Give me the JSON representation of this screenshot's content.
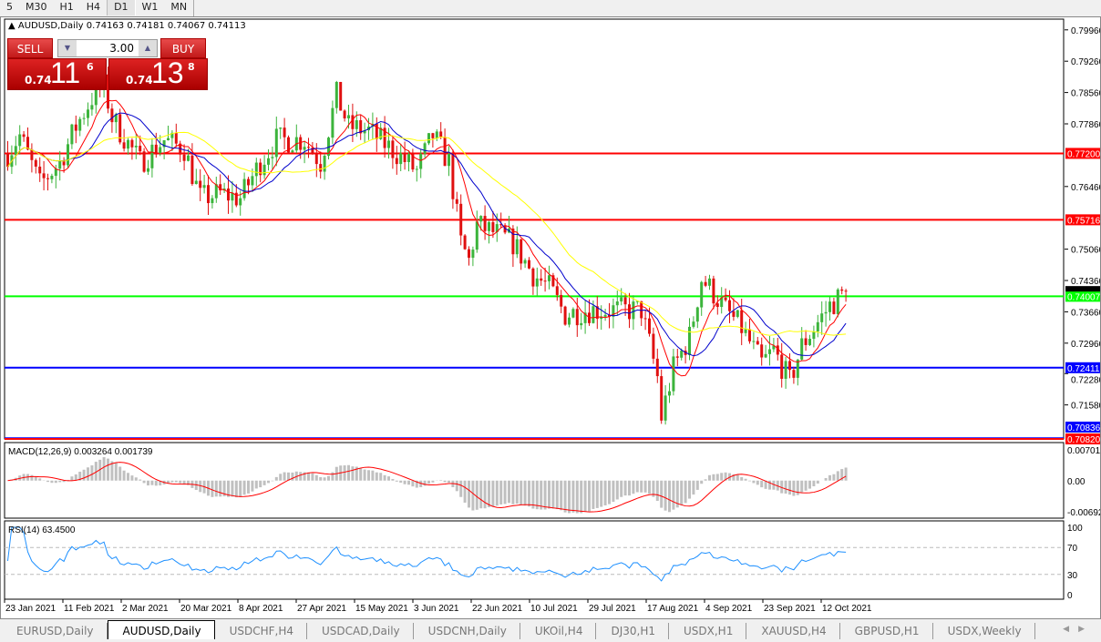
{
  "timeframes": [
    "5",
    "M30",
    "H1",
    "H4",
    "D1",
    "W1",
    "MN"
  ],
  "selected_timeframe": "D1",
  "header": {
    "symbol": "AUDUSD,Daily",
    "ohlc": "0.74163 0.74181 0.74067 0.74113"
  },
  "trade_panel": {
    "sell_label": "SELL",
    "buy_label": "BUY",
    "lot": "3.00",
    "sell": {
      "prefix": "0.74",
      "big": "11",
      "sup": "6"
    },
    "buy": {
      "prefix": "0.74",
      "big": "13",
      "sup": "8"
    }
  },
  "price_axis": {
    "ticks": [
      "0.79960",
      "0.79260",
      "0.78560",
      "0.77860",
      "0.76460",
      "0.75060",
      "0.74360",
      "0.73660",
      "0.72960",
      "0.72280",
      "0.71580"
    ],
    "tick_values": [
      0.7996,
      0.7926,
      0.7856,
      0.7786,
      0.7646,
      0.7506,
      0.7436,
      0.7366,
      0.7296,
      0.7228,
      0.7158
    ],
    "range": [
      0.7082,
      0.802
    ]
  },
  "levels": [
    {
      "label": "0.77200",
      "value": 0.772,
      "color": "#ff0000"
    },
    {
      "label": "0.75716",
      "value": 0.75716,
      "color": "#ff0000"
    },
    {
      "label": "0.74007",
      "value": 0.74007,
      "color": "#00ff00"
    },
    {
      "label": "0.72411",
      "value": 0.72411,
      "color": "#0000ff"
    },
    {
      "label": "0.70836",
      "value": 0.70836,
      "color": "#0000ff"
    },
    {
      "label": "0.70820",
      "value": 0.7082,
      "color": "#ff0000"
    }
  ],
  "current_price": {
    "label": "0.74113",
    "value": 0.74113
  },
  "candle_colors": {
    "up": "#3cb43c",
    "down": "#e01010"
  },
  "ma_colors": [
    "#ff0000",
    "#0000cc",
    "#ffff00"
  ],
  "price_path": [
    [
      0,
      0.772
    ],
    [
      3,
      0.776
    ],
    [
      8,
      0.765
    ],
    [
      13,
      0.77
    ],
    [
      17,
      0.778
    ],
    [
      22,
      0.786
    ],
    [
      24,
      0.787
    ],
    [
      26,
      0.78
    ],
    [
      28,
      0.777
    ],
    [
      33,
      0.77
    ],
    [
      39,
      0.775
    ],
    [
      44,
      0.773
    ],
    [
      48,
      0.762
    ],
    [
      53,
      0.763
    ],
    [
      58,
      0.762
    ],
    [
      63,
      0.77
    ],
    [
      67,
      0.775
    ],
    [
      74,
      0.775
    ],
    [
      78,
      0.77
    ],
    [
      82,
      0.785
    ],
    [
      85,
      0.778
    ],
    [
      90,
      0.777
    ],
    [
      97,
      0.772
    ],
    [
      102,
      0.768
    ],
    [
      106,
      0.776
    ],
    [
      110,
      0.77
    ],
    [
      113,
      0.752
    ],
    [
      115,
      0.748
    ],
    [
      117,
      0.756
    ],
    [
      122,
      0.754
    ],
    [
      126,
      0.752
    ],
    [
      131,
      0.745
    ],
    [
      135,
      0.742
    ],
    [
      139,
      0.736
    ],
    [
      144,
      0.737
    ],
    [
      151,
      0.737
    ],
    [
      158,
      0.737
    ],
    [
      162,
      0.722
    ],
    [
      163,
      0.713
    ],
    [
      166,
      0.724
    ],
    [
      170,
      0.731
    ],
    [
      173,
      0.744
    ],
    [
      175,
      0.742
    ],
    [
      179,
      0.737
    ],
    [
      183,
      0.733
    ],
    [
      188,
      0.725
    ],
    [
      191,
      0.728
    ],
    [
      195,
      0.721
    ],
    [
      198,
      0.729
    ],
    [
      201,
      0.733
    ],
    [
      205,
      0.738
    ],
    [
      209,
      0.7411
    ]
  ],
  "macd": {
    "label": "MACD(12,26,9) 0.003264 0.001739",
    "ticks": [
      "0.007015",
      "0.00",
      "-0.006923"
    ]
  },
  "rsi": {
    "label": "RSI(14) 63.4500",
    "ticks": [
      "100",
      "70",
      "30",
      "0"
    ],
    "color": "#1e90ff"
  },
  "dates": [
    "23 Jan 2021",
    "11 Feb 2021",
    "2 Mar 2021",
    "20 Mar 2021",
    "8 Apr 2021",
    "27 Apr 2021",
    "15 May 2021",
    "3 Jun 2021",
    "22 Jun 2021",
    "10 Jul 2021",
    "29 Jul 2021",
    "17 Aug 2021",
    "4 Sep 2021",
    "23 Sep 2021",
    "12 Oct 2021"
  ],
  "tabs": [
    "EURUSD,Daily",
    "AUDUSD,Daily",
    "USDCHF,H4",
    "USDCAD,Daily",
    "USDCNH,Daily",
    "UKOil,H4",
    "DJ30,H1",
    "USDX,H1",
    "XAUUSD,H4",
    "GBPUSD,H1",
    "USDX,Weekly"
  ],
  "active_tab": "AUDUSD,Daily"
}
